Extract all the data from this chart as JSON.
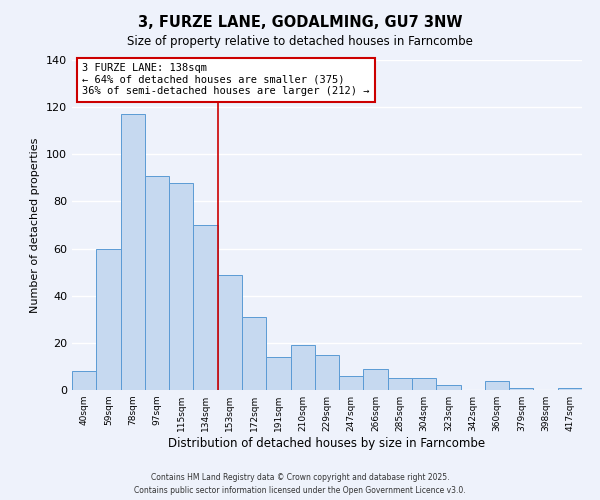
{
  "title": "3, FURZE LANE, GODALMING, GU7 3NW",
  "subtitle": "Size of property relative to detached houses in Farncombe",
  "xlabel": "Distribution of detached houses by size in Farncombe",
  "ylabel": "Number of detached properties",
  "bar_labels": [
    "40sqm",
    "59sqm",
    "78sqm",
    "97sqm",
    "115sqm",
    "134sqm",
    "153sqm",
    "172sqm",
    "191sqm",
    "210sqm",
    "229sqm",
    "247sqm",
    "266sqm",
    "285sqm",
    "304sqm",
    "323sqm",
    "342sqm",
    "360sqm",
    "379sqm",
    "398sqm",
    "417sqm"
  ],
  "bar_values": [
    8,
    60,
    117,
    91,
    88,
    70,
    49,
    31,
    14,
    19,
    15,
    6,
    9,
    5,
    5,
    2,
    0,
    4,
    1,
    0,
    1
  ],
  "bar_color": "#c6d9f0",
  "bar_edge_color": "#5b9bd5",
  "ylim": [
    0,
    140
  ],
  "yticks": [
    0,
    20,
    40,
    60,
    80,
    100,
    120,
    140
  ],
  "vline_x": 5.5,
  "vline_color": "#cc0000",
  "annotation_title": "3 FURZE LANE: 138sqm",
  "annotation_line1": "← 64% of detached houses are smaller (375)",
  "annotation_line2": "36% of semi-detached houses are larger (212) →",
  "annotation_box_color": "#ffffff",
  "annotation_box_edge": "#cc0000",
  "footer1": "Contains HM Land Registry data © Crown copyright and database right 2025.",
  "footer2": "Contains public sector information licensed under the Open Government Licence v3.0.",
  "background_color": "#eef2fb",
  "grid_color": "#ffffff"
}
